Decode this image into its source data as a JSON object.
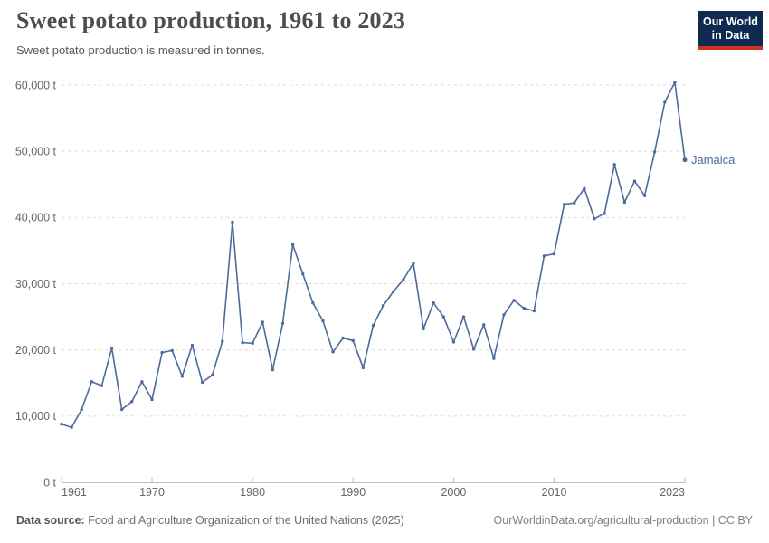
{
  "header": {
    "title": "Sweet potato production, 1961 to 2023",
    "subtitle": "Sweet potato production is measured in tonnes."
  },
  "logo": {
    "line1": "Our World",
    "line2": "in Data"
  },
  "colors": {
    "line": "#4c6a9c",
    "entity_label": "#4c6a9c",
    "grid": "#dcdcdc",
    "axis": "#bdbdbd",
    "tick_text": "#666666",
    "logo_bg": "#0e2a51",
    "logo_bar": "#cf3020"
  },
  "chart_data": {
    "type": "line",
    "title": "Sweet potato production, 1961 to 2023",
    "subtitle": "Sweet potato production is measured in tonnes.",
    "unit": "tonnes",
    "grid": true,
    "legend_position": "label-at-line-end",
    "xlim": [
      1961,
      2023
    ],
    "ylim": [
      0,
      60000
    ],
    "xticks": [
      1961,
      1970,
      1980,
      1990,
      2000,
      2010,
      2023
    ],
    "yticks": [
      0,
      10000,
      20000,
      30000,
      40000,
      50000,
      60000
    ],
    "ytick_labels": [
      "0 t",
      "10,000 t",
      "20,000 t",
      "30,000 t",
      "40,000 t",
      "50,000 t",
      "60,000 t"
    ],
    "series": [
      {
        "name": "Jamaica",
        "x": [
          1961,
          1962,
          1963,
          1964,
          1965,
          1966,
          1967,
          1968,
          1969,
          1970,
          1971,
          1972,
          1973,
          1974,
          1975,
          1976,
          1977,
          1978,
          1979,
          1980,
          1981,
          1982,
          1983,
          1984,
          1985,
          1986,
          1987,
          1988,
          1989,
          1990,
          1991,
          1992,
          1993,
          1994,
          1995,
          1996,
          1997,
          1998,
          1999,
          2000,
          2001,
          2002,
          2003,
          2004,
          2005,
          2006,
          2007,
          2008,
          2009,
          2010,
          2011,
          2012,
          2013,
          2014,
          2015,
          2016,
          2017,
          2018,
          2019,
          2020,
          2021,
          2022,
          2023
        ],
        "values": [
          8800,
          8300,
          11000,
          15200,
          14600,
          20300,
          11000,
          12200,
          15200,
          12500,
          19600,
          19900,
          16000,
          20700,
          15100,
          16200,
          21300,
          39300,
          21100,
          21000,
          24200,
          17000,
          24000,
          35900,
          31500,
          27100,
          24400,
          19700,
          21800,
          21400,
          17300,
          23700,
          26700,
          28800,
          30600,
          33100,
          23200,
          27100,
          25000,
          21200,
          25000,
          20100,
          23800,
          18700,
          25300,
          27500,
          26300,
          25900,
          34200,
          34500,
          42000,
          42200,
          44400,
          39800,
          40600,
          48000,
          42300,
          45500,
          43300,
          49900,
          57400,
          60400,
          48700
        ]
      }
    ],
    "entity_label": "Jamaica"
  },
  "footer": {
    "source_label": "Data source:",
    "source_text": "Food and Agriculture Organization of the United Nations (2025)",
    "attribution": "OurWorldinData.org/agricultural-production | CC BY"
  }
}
